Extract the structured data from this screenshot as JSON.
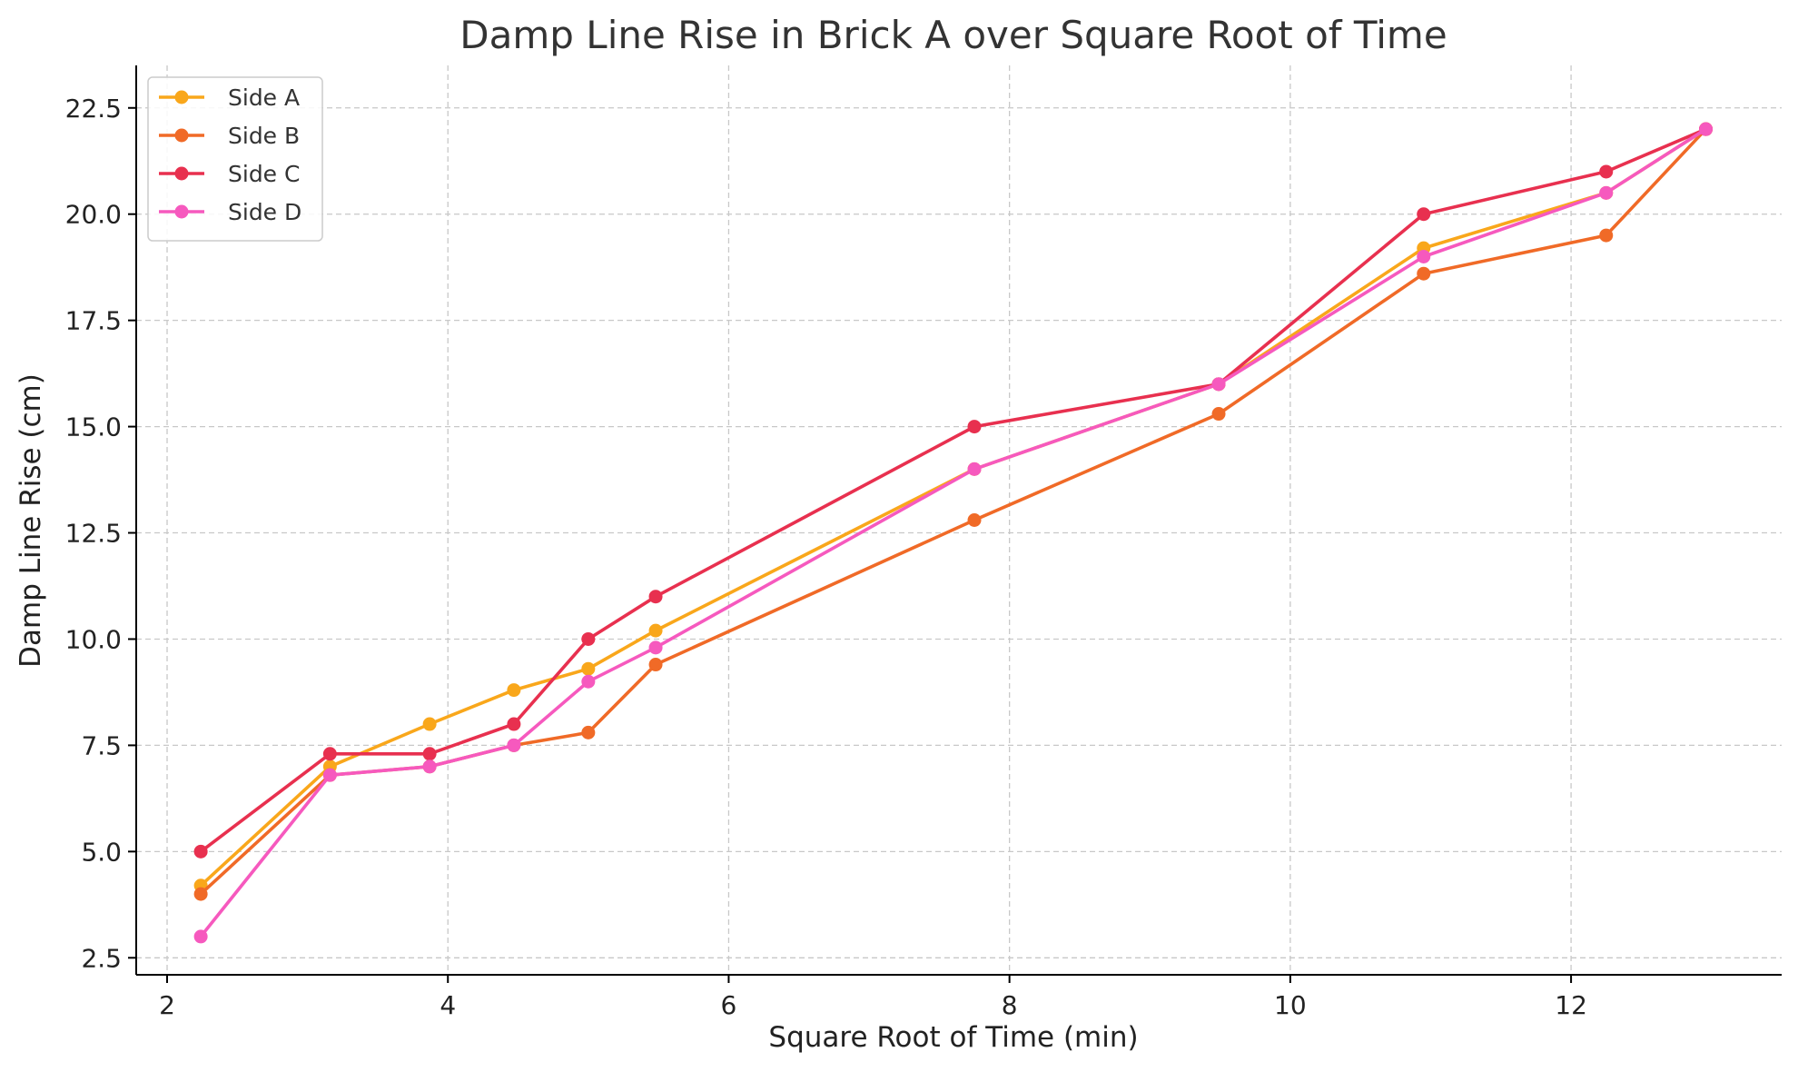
{
  "chart_data": {
    "type": "line",
    "title": "Damp Line Rise in Brick A over Square Root of Time",
    "xlabel": "Square Root of Time (min)",
    "ylabel": "Damp Line Rise (cm)",
    "xlim": [
      1.78,
      13.5
    ],
    "ylim": [
      2.1,
      23.5
    ],
    "xticks": [
      2,
      4,
      6,
      8,
      10,
      12
    ],
    "xtick_labels": [
      "2",
      "4",
      "6",
      "8",
      "10",
      "12"
    ],
    "yticks": [
      2.5,
      5.0,
      7.5,
      10.0,
      12.5,
      15.0,
      17.5,
      20.0,
      22.5
    ],
    "ytick_labels": [
      "2.5",
      "5.0",
      "7.5",
      "10.0",
      "12.5",
      "15.0",
      "17.5",
      "20.0",
      "22.5"
    ],
    "grid": true,
    "legend_position": "top-left",
    "x": [
      2.24,
      3.16,
      3.87,
      4.47,
      5.0,
      5.48,
      7.75,
      9.49,
      10.95,
      12.25,
      12.96
    ],
    "series": [
      {
        "name": "Side A",
        "color": "#f9a71b",
        "values": [
          4.2,
          7.0,
          8.0,
          8.8,
          9.3,
          10.2,
          14.0,
          16.0,
          19.2,
          20.5,
          22.0
        ]
      },
      {
        "name": "Side B",
        "color": "#f06a27",
        "values": [
          4.0,
          6.8,
          7.0,
          7.5,
          7.8,
          9.4,
          12.8,
          15.3,
          18.6,
          19.5,
          22.0
        ]
      },
      {
        "name": "Side C",
        "color": "#e8304f",
        "values": [
          5.0,
          7.3,
          7.3,
          8.0,
          10.0,
          11.0,
          15.0,
          16.0,
          20.0,
          21.0,
          22.0
        ]
      },
      {
        "name": "Side D",
        "color": "#f659be",
        "values": [
          3.0,
          6.8,
          7.0,
          7.5,
          9.0,
          9.8,
          14.0,
          16.0,
          19.0,
          20.5,
          22.0
        ]
      }
    ]
  }
}
